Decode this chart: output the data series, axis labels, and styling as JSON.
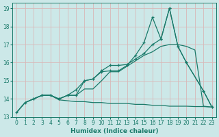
{
  "xlabel": "Humidex (Indice chaleur)",
  "bg_color": "#cce8e8",
  "grid_color": "#e8c8c8",
  "line_color": "#1a7a6a",
  "xlim": [
    -0.5,
    23.5
  ],
  "ylim": [
    13.0,
    19.3
  ],
  "yticks": [
    13,
    14,
    15,
    16,
    17,
    18,
    19
  ],
  "xticks": [
    0,
    1,
    2,
    3,
    4,
    5,
    6,
    7,
    8,
    9,
    10,
    11,
    12,
    13,
    14,
    15,
    16,
    17,
    18,
    19,
    20,
    21,
    22,
    23
  ],
  "curve1_x": [
    0,
    1,
    2,
    3,
    4,
    5,
    6,
    7,
    8,
    9,
    10,
    11,
    12,
    13,
    14,
    15,
    16,
    17,
    18,
    19,
    20,
    21,
    22,
    23
  ],
  "curve1_y": [
    13.25,
    13.8,
    14.0,
    14.2,
    14.2,
    14.0,
    14.2,
    14.2,
    14.55,
    14.55,
    15.0,
    15.5,
    15.5,
    15.8,
    16.1,
    16.4,
    16.6,
    16.9,
    17.0,
    17.0,
    16.9,
    16.7,
    13.6,
    13.55
  ],
  "curve2_x": [
    0,
    1,
    2,
    3,
    4,
    5,
    6,
    7,
    8,
    9,
    10,
    11,
    12,
    13,
    14,
    15,
    16,
    17,
    18,
    19,
    20,
    22,
    23
  ],
  "curve2_y": [
    13.25,
    13.8,
    14.0,
    14.2,
    14.2,
    14.0,
    14.2,
    14.2,
    15.0,
    15.1,
    15.5,
    15.55,
    15.55,
    15.85,
    16.4,
    17.1,
    18.5,
    17.3,
    19.0,
    16.9,
    16.0,
    14.45,
    13.55
  ],
  "curve3_x": [
    2,
    3,
    4,
    5,
    6,
    7,
    8,
    9,
    10,
    11,
    12,
    13,
    14,
    15,
    16,
    17,
    18,
    19,
    20,
    22,
    23
  ],
  "curve3_y": [
    14.0,
    14.2,
    14.2,
    14.0,
    14.2,
    14.5,
    15.0,
    15.1,
    15.55,
    15.85,
    15.85,
    15.9,
    16.2,
    16.5,
    17.0,
    17.3,
    19.0,
    16.9,
    16.0,
    14.45,
    13.55
  ],
  "flat_x": [
    0,
    1,
    2,
    3,
    4,
    5,
    6,
    7,
    8,
    9,
    10,
    11,
    12,
    13,
    14,
    15,
    16,
    17,
    18,
    19,
    20,
    21,
    22,
    23
  ],
  "flat_y": [
    13.25,
    13.8,
    14.0,
    14.2,
    14.2,
    13.95,
    13.9,
    13.85,
    13.85,
    13.8,
    13.8,
    13.75,
    13.75,
    13.75,
    13.7,
    13.7,
    13.65,
    13.65,
    13.6,
    13.6,
    13.6,
    13.58,
    13.58,
    13.55
  ]
}
